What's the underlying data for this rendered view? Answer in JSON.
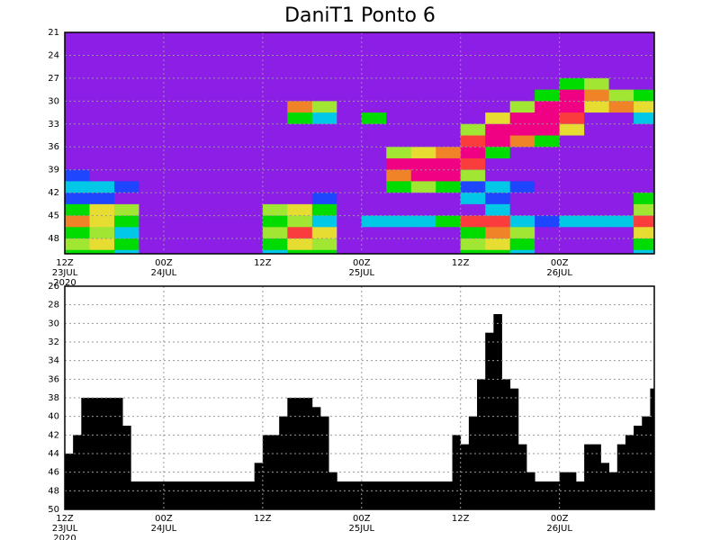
{
  "chart_data": [
    {
      "type": "heatmap",
      "title": "DaniT1 Ponto 6",
      "x": [
        1.5,
        4.5,
        7.5,
        10.5,
        13.5,
        16.5,
        19.5,
        22.5,
        25.5,
        28.5,
        31.5,
        34.5,
        37.5,
        40.5,
        43.5,
        46.5,
        49.5,
        52.5,
        55.5,
        58.5,
        61.5,
        64.5,
        67.5,
        70.5
      ],
      "y": [
        21.75,
        23.25,
        24.75,
        26.25,
        27.75,
        29.25,
        30.75,
        32.25,
        33.75,
        35.25,
        36.75,
        38.25,
        39.75,
        41.25,
        42.75,
        44.25,
        45.75,
        47.25,
        48.75,
        50.25
      ],
      "z": [
        [
          0,
          0,
          0,
          0,
          0,
          0,
          0,
          0,
          0,
          0,
          0,
          0,
          0,
          0,
          0,
          0,
          0,
          0,
          0,
          0,
          0,
          0,
          0,
          0
        ],
        [
          0,
          0,
          0,
          0,
          0,
          0,
          0,
          0,
          0,
          0,
          0,
          0,
          0,
          0,
          0,
          0,
          0,
          0,
          0,
          0,
          0,
          0,
          0,
          0
        ],
        [
          0,
          0,
          0,
          0,
          0,
          0,
          0,
          0,
          0,
          0,
          0,
          0,
          0,
          0,
          0,
          0,
          0,
          0,
          0,
          0,
          0,
          0,
          0,
          0
        ],
        [
          0,
          0,
          0,
          0,
          0,
          0,
          0,
          0,
          0,
          0,
          0,
          0,
          0,
          0,
          0,
          0,
          0,
          0,
          0,
          0,
          0,
          0,
          0,
          0
        ],
        [
          0,
          0,
          0,
          0,
          0,
          0,
          0,
          0,
          0,
          0,
          0,
          0,
          0,
          0,
          0,
          0,
          0,
          0,
          0,
          0,
          3,
          4,
          0,
          0
        ],
        [
          0,
          0,
          0,
          0,
          0,
          0,
          0,
          0,
          0,
          0,
          0,
          0,
          0,
          0,
          0,
          0,
          0,
          0,
          0,
          3,
          8,
          6,
          4,
          3
        ],
        [
          0,
          0,
          0,
          0,
          0,
          0,
          0,
          0,
          0,
          6,
          4,
          0,
          0,
          0,
          0,
          0,
          0,
          0,
          4,
          8,
          8,
          5,
          6,
          5
        ],
        [
          0,
          0,
          0,
          0,
          0,
          0,
          0,
          0,
          0,
          3,
          2,
          0,
          3,
          0,
          0,
          0,
          0,
          5,
          8,
          8,
          7,
          0,
          0,
          2
        ],
        [
          0,
          0,
          0,
          0,
          0,
          0,
          0,
          0,
          0,
          0,
          0,
          0,
          0,
          0,
          0,
          0,
          4,
          8,
          8,
          8,
          5,
          0,
          0,
          0
        ],
        [
          0,
          0,
          0,
          0,
          0,
          0,
          0,
          0,
          0,
          0,
          0,
          0,
          0,
          0,
          0,
          0,
          7,
          8,
          6,
          3,
          0,
          0,
          0,
          0
        ],
        [
          0,
          0,
          0,
          0,
          0,
          0,
          0,
          0,
          0,
          0,
          0,
          0,
          0,
          4,
          5,
          6,
          8,
          3,
          0,
          0,
          0,
          0,
          0,
          0
        ],
        [
          0,
          0,
          0,
          0,
          0,
          0,
          0,
          0,
          0,
          0,
          0,
          0,
          0,
          8,
          8,
          8,
          7,
          0,
          0,
          0,
          0,
          0,
          0,
          0
        ],
        [
          1,
          0,
          0,
          0,
          0,
          0,
          0,
          0,
          0,
          0,
          0,
          0,
          0,
          6,
          8,
          8,
          4,
          0,
          0,
          0,
          0,
          0,
          0,
          0
        ],
        [
          2,
          2,
          1,
          0,
          0,
          0,
          0,
          0,
          0,
          0,
          0,
          0,
          0,
          3,
          4,
          3,
          1,
          2,
          1,
          0,
          0,
          0,
          0,
          0
        ],
        [
          1,
          1,
          0,
          0,
          0,
          0,
          0,
          0,
          0,
          0,
          1,
          0,
          0,
          0,
          0,
          0,
          2,
          1,
          0,
          0,
          0,
          0,
          0,
          3
        ],
        [
          3,
          5,
          4,
          0,
          0,
          0,
          0,
          0,
          4,
          5,
          3,
          0,
          0,
          0,
          0,
          0,
          0,
          2,
          0,
          0,
          0,
          0,
          0,
          4
        ],
        [
          6,
          5,
          3,
          0,
          0,
          0,
          0,
          0,
          3,
          4,
          2,
          0,
          2,
          2,
          2,
          3,
          7,
          7,
          2,
          1,
          2,
          2,
          2,
          7
        ],
        [
          3,
          4,
          2,
          0,
          0,
          0,
          0,
          0,
          4,
          7,
          5,
          0,
          0,
          0,
          0,
          0,
          3,
          6,
          4,
          0,
          0,
          0,
          0,
          5
        ],
        [
          4,
          5,
          3,
          0,
          0,
          0,
          0,
          0,
          3,
          5,
          4,
          0,
          0,
          0,
          0,
          0,
          4,
          5,
          3,
          0,
          0,
          0,
          0,
          3
        ],
        [
          3,
          3,
          2,
          0,
          0,
          0,
          0,
          0,
          2,
          3,
          3,
          0,
          0,
          0,
          0,
          0,
          3,
          3,
          2,
          0,
          0,
          0,
          0,
          2
        ]
      ],
      "colors": [
        "#8c1ee6",
        "#1e46ff",
        "#00c8e6",
        "#00dc00",
        "#a0e632",
        "#e6dc32",
        "#f08228",
        "#fa3c3c",
        "#f00082"
      ],
      "xlim": [
        0,
        71.5
      ],
      "ylim": [
        50,
        21
      ],
      "xticks": [
        {
          "value": 0,
          "label": [
            "12Z",
            "23JUL",
            "2020"
          ]
        },
        {
          "value": 12,
          "label": [
            "00Z",
            "24JUL"
          ]
        },
        {
          "value": 24,
          "label": [
            "12Z"
          ]
        },
        {
          "value": 36,
          "label": [
            "00Z",
            "25JUL"
          ]
        },
        {
          "value": 48,
          "label": [
            "12Z"
          ]
        },
        {
          "value": 60,
          "label": [
            "00Z",
            "26JUL"
          ]
        }
      ],
      "yticks": [
        21,
        24,
        27,
        30,
        33,
        36,
        39,
        42,
        45,
        48
      ],
      "grid": true
    },
    {
      "type": "bar",
      "x": [
        0,
        1,
        2,
        3,
        4,
        5,
        6,
        7,
        8,
        9,
        10,
        11,
        12,
        13,
        14,
        15,
        16,
        17,
        18,
        19,
        20,
        21,
        22,
        23,
        24,
        25,
        26,
        27,
        28,
        29,
        30,
        31,
        32,
        33,
        34,
        35,
        36,
        37,
        38,
        39,
        40,
        41,
        42,
        43,
        44,
        45,
        46,
        47,
        48,
        49,
        50,
        51,
        52,
        53,
        54,
        55,
        56,
        57,
        58,
        59,
        60,
        61,
        62,
        63,
        64,
        65,
        66,
        67,
        68,
        69,
        70,
        71
      ],
      "values": [
        44,
        42,
        38,
        38,
        38,
        38,
        38,
        41,
        47,
        47,
        47,
        47,
        47,
        47,
        47,
        47,
        47,
        47,
        47,
        47,
        47,
        47,
        47,
        45,
        42,
        42,
        40,
        38,
        38,
        38,
        39,
        40,
        46,
        47,
        47,
        47,
        47,
        47,
        47,
        47,
        47,
        47,
        47,
        47,
        47,
        47,
        47,
        42,
        43,
        40,
        36,
        31,
        29,
        36,
        37,
        43,
        46,
        47,
        47,
        47,
        46,
        46,
        47,
        43,
        43,
        45,
        46,
        43,
        42,
        41,
        40,
        37
      ],
      "color": "#000000",
      "xlim": [
        0,
        71.5
      ],
      "ylim": [
        50,
        26
      ],
      "xticks": [
        {
          "value": 0,
          "label": [
            "12Z",
            "23JUL",
            "2020"
          ]
        },
        {
          "value": 12,
          "label": [
            "00Z",
            "24JUL"
          ]
        },
        {
          "value": 24,
          "label": [
            "12Z"
          ]
        },
        {
          "value": 36,
          "label": [
            "00Z",
            "25JUL"
          ]
        },
        {
          "value": 48,
          "label": [
            "12Z"
          ]
        },
        {
          "value": 60,
          "label": [
            "00Z",
            "26JUL"
          ]
        }
      ],
      "yticks": [
        26,
        28,
        30,
        32,
        34,
        36,
        38,
        40,
        42,
        44,
        46,
        48,
        50
      ],
      "grid": true
    }
  ]
}
